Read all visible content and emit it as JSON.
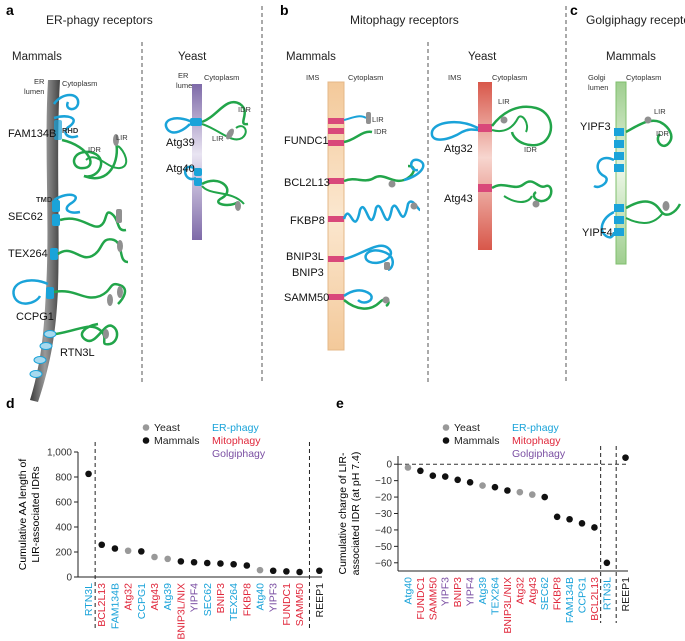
{
  "panels": {
    "a": {
      "letter": "a",
      "title": "ER-phagy receptors",
      "mammals": {
        "label": "Mammals",
        "lumen": [
          "ER",
          "lumen"
        ],
        "cytoplasm": "Cytoplasm",
        "proteins": [
          "FAM134B",
          "SEC62",
          "TEX264",
          "CCPG1",
          "RTN3L"
        ],
        "annotations": {
          "rhd": "RHD",
          "idr": "IDR",
          "lir": "LIR",
          "tmd": "TMD"
        }
      },
      "yeast": {
        "label": "Yeast",
        "lumen": [
          "ER",
          "lumen"
        ],
        "cytoplasm": "Cytoplasm",
        "proteins": [
          "Atg39",
          "Atg40"
        ],
        "annotations": {
          "idr": "IDR",
          "lir": "LIR"
        }
      }
    },
    "b": {
      "letter": "b",
      "title": "Mitophagy receptors",
      "mammals": {
        "label": "Mammals",
        "ims": "IMS",
        "cytoplasm": "Cytoplasm",
        "proteins": [
          "FUNDC1",
          "BCL2L13",
          "FKBP8",
          "BNIP3L",
          "BNIP3",
          "SAMM50"
        ],
        "annotations": {
          "idr": "IDR",
          "lir": "LIR"
        }
      },
      "yeast": {
        "label": "Yeast",
        "ims": "IMS",
        "cytoplasm": "Cytoplasm",
        "proteins": [
          "Atg32",
          "Atg43"
        ],
        "annotations": {
          "idr": "IDR",
          "lir": "LIR"
        }
      }
    },
    "c": {
      "letter": "c",
      "title": "Golgiphagy receptors",
      "mammals": {
        "label": "Mammals",
        "lumen": [
          "Golgi",
          "lumen"
        ],
        "cytoplasm": "Cytoplasm",
        "proteins": [
          "YIPF3",
          "YIPF4"
        ],
        "annotations": {
          "idr": "IDR",
          "lir": "LIR"
        }
      }
    }
  },
  "chart_data": [
    {
      "panel": "d",
      "type": "scatter",
      "ylabel": [
        "Cumulative AA length of",
        "LIR-associated IDRs"
      ],
      "ylim": [
        0,
        1000
      ],
      "yticks": [
        "0",
        "200",
        "400",
        "600",
        "800",
        "1,000"
      ],
      "legend": {
        "species": [
          "Yeast",
          "Mammals"
        ],
        "classes": [
          "ER-phagy",
          "Mitophagy",
          "Golgiphagy"
        ]
      },
      "points": [
        {
          "label": "RTN3L",
          "value": 825,
          "species": "Mammals",
          "class": "ER-phagy"
        },
        {
          "label": "BCL2L13",
          "value": 258,
          "species": "Mammals",
          "class": "Mitophagy"
        },
        {
          "label": "FAM134B",
          "value": 228,
          "species": "Mammals",
          "class": "ER-phagy"
        },
        {
          "label": "Atg32",
          "value": 210,
          "species": "Yeast",
          "class": "Mitophagy"
        },
        {
          "label": "CCPG1",
          "value": 205,
          "species": "Mammals",
          "class": "ER-phagy"
        },
        {
          "label": "Atg43",
          "value": 160,
          "species": "Yeast",
          "class": "Mitophagy"
        },
        {
          "label": "Atg39",
          "value": 145,
          "species": "Yeast",
          "class": "ER-phagy"
        },
        {
          "label": "BNIP3L/NIX",
          "value": 125,
          "species": "Mammals",
          "class": "Mitophagy"
        },
        {
          "label": "YIPF4",
          "value": 118,
          "species": "Mammals",
          "class": "Golgiphagy"
        },
        {
          "label": "SEC62",
          "value": 112,
          "species": "Mammals",
          "class": "ER-phagy"
        },
        {
          "label": "BNIP3",
          "value": 108,
          "species": "Mammals",
          "class": "Mitophagy"
        },
        {
          "label": "TEX264",
          "value": 102,
          "species": "Mammals",
          "class": "ER-phagy"
        },
        {
          "label": "FKBP8",
          "value": 92,
          "species": "Mammals",
          "class": "Mitophagy"
        },
        {
          "label": "Atg40",
          "value": 55,
          "species": "Yeast",
          "class": "ER-phagy"
        },
        {
          "label": "YIPF3",
          "value": 50,
          "species": "Mammals",
          "class": "Golgiphagy"
        },
        {
          "label": "FUNDC1",
          "value": 45,
          "species": "Mammals",
          "class": "Mitophagy"
        },
        {
          "label": "SAMM50",
          "value": 40,
          "species": "Mammals",
          "class": "Mitophagy"
        },
        {
          "label": "REEP1",
          "value": 50,
          "species": "Mammals",
          "class": "Other"
        }
      ]
    },
    {
      "panel": "e",
      "type": "scatter",
      "ylabel": [
        "Cumulative charge of LIR-",
        "associated IDR (at pH 7.4)"
      ],
      "ylim": [
        -65,
        5
      ],
      "yticks": [
        "0",
        "−10",
        "−20",
        "−30",
        "−40",
        "−50",
        "−60"
      ],
      "legend": {
        "species": [
          "Yeast",
          "Mammals"
        ],
        "classes": [
          "ER-phagy",
          "Mitophagy",
          "Golgiphagy"
        ]
      },
      "points": [
        {
          "label": "Atg40",
          "value": -2,
          "species": "Yeast",
          "class": "ER-phagy"
        },
        {
          "label": "FUNDC1",
          "value": -4,
          "species": "Mammals",
          "class": "Mitophagy"
        },
        {
          "label": "SAMM50",
          "value": -7,
          "species": "Mammals",
          "class": "Mitophagy"
        },
        {
          "label": "YIPF3",
          "value": -7.5,
          "species": "Mammals",
          "class": "Golgiphagy"
        },
        {
          "label": "BNIP3",
          "value": -9.5,
          "species": "Mammals",
          "class": "Mitophagy"
        },
        {
          "label": "YIPF4",
          "value": -11,
          "species": "Mammals",
          "class": "Golgiphagy"
        },
        {
          "label": "Atg39",
          "value": -13,
          "species": "Yeast",
          "class": "ER-phagy"
        },
        {
          "label": "TEX264",
          "value": -14,
          "species": "Mammals",
          "class": "ER-phagy"
        },
        {
          "label": "BNIP3L/NIX",
          "value": -16,
          "species": "Mammals",
          "class": "Mitophagy"
        },
        {
          "label": "Atg32",
          "value": -17,
          "species": "Yeast",
          "class": "Mitophagy"
        },
        {
          "label": "Atg43",
          "value": -18.5,
          "species": "Yeast",
          "class": "Mitophagy"
        },
        {
          "label": "SEC62",
          "value": -20,
          "species": "Mammals",
          "class": "ER-phagy"
        },
        {
          "label": "FKBP8",
          "value": -32,
          "species": "Mammals",
          "class": "Mitophagy"
        },
        {
          "label": "FAM134B",
          "value": -33.5,
          "species": "Mammals",
          "class": "ER-phagy"
        },
        {
          "label": "CCPG1",
          "value": -36,
          "species": "Mammals",
          "class": "ER-phagy"
        },
        {
          "label": "BCL2L13",
          "value": -38.5,
          "species": "Mammals",
          "class": "Mitophagy"
        },
        {
          "label": "RTN3L",
          "value": -60,
          "species": "Mammals",
          "class": "ER-phagy"
        },
        {
          "label": "REEP1",
          "value": 4,
          "species": "Mammals",
          "class": "Other"
        }
      ]
    }
  ],
  "panel_letters": {
    "d": "d",
    "e": "e"
  },
  "colors": {
    "er": "#1aa3d9",
    "mito": "#e0283c",
    "golgi": "#7b4fa3",
    "idr": "#22a54a",
    "lir": "#909090",
    "tm": "#1aa3d9",
    "mito_tm": "#d9487a"
  }
}
